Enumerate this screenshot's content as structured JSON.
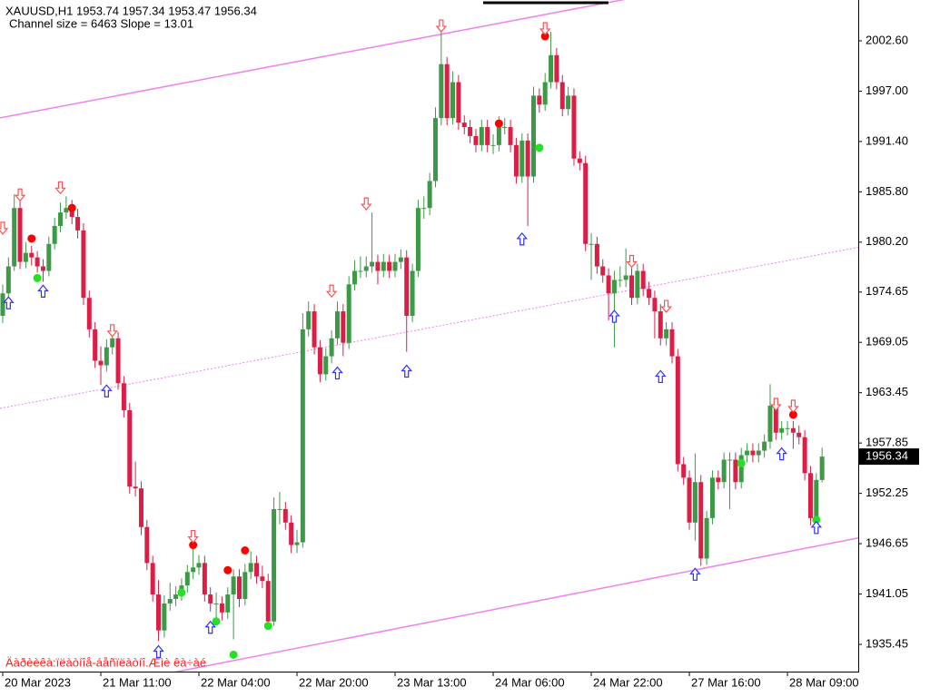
{
  "chart_data": {
    "type": "candlestick",
    "title": "XAUUSD,H1  1953.74 1957.34 1953.47 1956.34",
    "subtitle": "Channel size = 6463 Slope = 13.01",
    "footer": "Äàðèèêà:ïëàòíîå-áåñïëàòíî.Æìè êà÷àé",
    "bull_color": "#3c9a46",
    "bear_color": "#dc1e46",
    "xlim": [
      -0.47,
      148.27
    ],
    "ylim": [
      1932.42,
      2007.14
    ],
    "yticks": [
      {
        "value": 2002.6,
        "label": "2002.60"
      },
      {
        "value": 1997,
        "label": "1997.00"
      },
      {
        "value": 1991.4,
        "label": "1991.40"
      },
      {
        "value": 1985.8,
        "label": "1985.80"
      },
      {
        "value": 1980.2,
        "label": "1980.20"
      },
      {
        "value": 1974.65,
        "label": "1974.65"
      },
      {
        "value": 1969.05,
        "label": "1969.05"
      },
      {
        "value": 1963.45,
        "label": "1963.45"
      },
      {
        "value": 1957.85,
        "label": "1957.85"
      },
      {
        "value": 1952.25,
        "label": "1952.25"
      },
      {
        "value": 1946.65,
        "label": "1946.65"
      },
      {
        "value": 1941.05,
        "label": "1941.05"
      },
      {
        "value": 1935.45,
        "label": "1935.45"
      }
    ],
    "xticks": [
      {
        "value": 0,
        "label": "20 Mar 2023"
      },
      {
        "value": 17,
        "label": "21 Mar 11:00"
      },
      {
        "value": 34,
        "label": "22 Mar 04:00"
      },
      {
        "value": 51,
        "label": "22 Mar 20:00"
      },
      {
        "value": 68,
        "label": "23 Mar 13:00"
      },
      {
        "value": 85,
        "label": "24 Mar 06:00"
      },
      {
        "value": 102,
        "label": "24 Mar 22:00"
      },
      {
        "value": 119,
        "label": "27 Mar 16:00"
      },
      {
        "value": 136,
        "label": "28 Mar 09:00"
      }
    ],
    "candles": [
      [
        1972.0,
        1975.5,
        1971.2,
        1974.5
      ],
      [
        1974.5,
        1978.5,
        1973.8,
        1977.5
      ],
      [
        1977.5,
        1985.5,
        1977.0,
        1984.0
      ],
      [
        1984.0,
        1984.8,
        1977.2,
        1978.0
      ],
      [
        1978.0,
        1980.2,
        1977.3,
        1979.0
      ],
      [
        1979.0,
        1979.8,
        1977.6,
        1978.5
      ],
      [
        1978.5,
        1979.2,
        1976.8,
        1977.5
      ],
      [
        1977.5,
        1978.3,
        1975.8,
        1977.0
      ],
      [
        1977.0,
        1980.8,
        1976.4,
        1980.0
      ],
      [
        1980.0,
        1982.9,
        1979.4,
        1982.0
      ],
      [
        1982.0,
        1984.6,
        1981.3,
        1983.5
      ],
      [
        1983.5,
        1985.3,
        1982.8,
        1984.0
      ],
      [
        1984.0,
        1984.9,
        1982.2,
        1983.0
      ],
      [
        1983.0,
        1983.9,
        1980.6,
        1981.5
      ],
      [
        1981.5,
        1982.3,
        1973.2,
        1974.0
      ],
      [
        1974.0,
        1974.8,
        1969.6,
        1970.5
      ],
      [
        1970.5,
        1971.3,
        1966.2,
        1967.0
      ],
      [
        1967.0,
        1968.6,
        1964.3,
        1966.5
      ],
      [
        1966.5,
        1969.4,
        1965.8,
        1968.5
      ],
      [
        1968.5,
        1970.3,
        1967.7,
        1969.5
      ],
      [
        1969.5,
        1970.2,
        1963.8,
        1964.5
      ],
      [
        1964.5,
        1965.3,
        1960.7,
        1961.5
      ],
      [
        1961.5,
        1962.3,
        1952.2,
        1953.0
      ],
      [
        1953.0,
        1955.8,
        1951.9,
        1952.8
      ],
      [
        1952.8,
        1953.6,
        1947.6,
        1948.5
      ],
      [
        1948.5,
        1949.3,
        1943.7,
        1944.5
      ],
      [
        1944.5,
        1945.3,
        1940.2,
        1941.0
      ],
      [
        1941.0,
        1942.6,
        1935.8,
        1937.0
      ],
      [
        1937.0,
        1940.9,
        1936.2,
        1940.0
      ],
      [
        1940.0,
        1942.3,
        1939.2,
        1940.5
      ],
      [
        1940.5,
        1941.9,
        1939.7,
        1941.0
      ],
      [
        1941.0,
        1942.8,
        1940.3,
        1942.0
      ],
      [
        1942.0,
        1944.3,
        1941.2,
        1943.5
      ],
      [
        1943.5,
        1946.8,
        1942.7,
        1944.0
      ],
      [
        1944.0,
        1945.4,
        1943.2,
        1944.5
      ],
      [
        1944.5,
        1945.3,
        1940.2,
        1941.0
      ],
      [
        1941.0,
        1941.8,
        1939.1,
        1940.0
      ],
      [
        1940.0,
        1941.2,
        1938.3,
        1940.0
      ],
      [
        1940.0,
        1940.8,
        1938.1,
        1939.0
      ],
      [
        1939.0,
        1941.8,
        1938.3,
        1941.0
      ],
      [
        1941.0,
        1943.8,
        1936.0,
        1943.0
      ],
      [
        1943.0,
        1943.8,
        1939.6,
        1940.5
      ],
      [
        1940.5,
        1944.4,
        1939.8,
        1943.5
      ],
      [
        1943.5,
        1945.8,
        1942.7,
        1944.5
      ],
      [
        1944.5,
        1945.3,
        1942.2,
        1943.0
      ],
      [
        1943.0,
        1944.2,
        1941.7,
        1942.5
      ],
      [
        1942.5,
        1943.3,
        1937.2,
        1938.0
      ],
      [
        1938.0,
        1951.8,
        1937.5,
        1950.5
      ],
      [
        1950.5,
        1952.4,
        1948.8,
        1950.5
      ],
      [
        1950.5,
        1951.3,
        1948.2,
        1949.0
      ],
      [
        1949.0,
        1949.8,
        1945.6,
        1946.5
      ],
      [
        1946.5,
        1948.2,
        1945.6,
        1946.8
      ],
      [
        1946.8,
        1972.3,
        1946.2,
        1970.5
      ],
      [
        1970.5,
        1973.6,
        1969.7,
        1972.5
      ],
      [
        1972.5,
        1973.3,
        1967.7,
        1968.5
      ],
      [
        1968.5,
        1969.3,
        1964.6,
        1965.5
      ],
      [
        1965.5,
        1968.4,
        1964.8,
        1967.5
      ],
      [
        1967.5,
        1970.4,
        1966.7,
        1969.5
      ],
      [
        1969.5,
        1973.6,
        1968.8,
        1972.5
      ],
      [
        1972.5,
        1973.3,
        1967.5,
        1969.0
      ],
      [
        1969.0,
        1976.4,
        1968.3,
        1975.5
      ],
      [
        1975.5,
        1978.2,
        1974.8,
        1977.0
      ],
      [
        1977.0,
        1978.6,
        1976.2,
        1977.0
      ],
      [
        1977.0,
        1978.6,
        1976.3,
        1977.5
      ],
      [
        1977.5,
        1983.5,
        1976.8,
        1978.0
      ],
      [
        1978.0,
        1978.8,
        1975.5,
        1977.0
      ],
      [
        1977.0,
        1978.9,
        1976.3,
        1978.0
      ],
      [
        1978.0,
        1978.8,
        1976.2,
        1977.0
      ],
      [
        1977.0,
        1978.9,
        1976.3,
        1978.0
      ],
      [
        1978.0,
        1979.4,
        1977.2,
        1978.5
      ],
      [
        1978.5,
        1979.3,
        1968.0,
        1972.0
      ],
      [
        1972.0,
        1977.8,
        1971.3,
        1977.0
      ],
      [
        1977.0,
        1984.9,
        1976.3,
        1984.0
      ],
      [
        1984.0,
        1985.3,
        1982.8,
        1984.0
      ],
      [
        1984.0,
        1987.9,
        1983.2,
        1987.0
      ],
      [
        1987.0,
        1995.2,
        1986.3,
        1994.0
      ],
      [
        1994.0,
        2004.0,
        1993.2,
        2000.0
      ],
      [
        2000.0,
        2000.8,
        1993.2,
        1994.0
      ],
      [
        1994.0,
        1999.2,
        1993.3,
        1998.0
      ],
      [
        1998.0,
        1998.8,
        1992.7,
        1993.5
      ],
      [
        1993.5,
        1994.3,
        1992.2,
        1993.0
      ],
      [
        1993.0,
        1993.8,
        1991.2,
        1992.0
      ],
      [
        1992.0,
        1992.8,
        1990.2,
        1991.0
      ],
      [
        1991.0,
        1993.8,
        1990.3,
        1993.0
      ],
      [
        1993.0,
        1993.8,
        1990.2,
        1991.0
      ],
      [
        1991.0,
        1992.2,
        1990.0,
        1991.0
      ],
      [
        1991.0,
        1994.2,
        1990.3,
        1993.0
      ],
      [
        1993.0,
        1994.0,
        1992.2,
        1993.0
      ],
      [
        1993.0,
        1993.8,
        1990.2,
        1991.0
      ],
      [
        1991.0,
        1991.8,
        1986.7,
        1987.5
      ],
      [
        1987.5,
        1992.3,
        1986.8,
        1991.5
      ],
      [
        1991.5,
        1992.3,
        1982.0,
        1987.5
      ],
      [
        1987.5,
        1997.5,
        1986.8,
        1996.5
      ],
      [
        1996.5,
        1997.3,
        1994.6,
        1995.5
      ],
      [
        1995.5,
        1999.0,
        1994.8,
        1998.0
      ],
      [
        1998.0,
        2003.6,
        1997.3,
        2001.0
      ],
      [
        2001.0,
        2001.8,
        1997.2,
        1998.0
      ],
      [
        1998.0,
        1998.8,
        1994.2,
        1995.0
      ],
      [
        1995.0,
        1997.5,
        1994.3,
        1996.5
      ],
      [
        1996.5,
        1997.3,
        1988.7,
        1989.5
      ],
      [
        1989.5,
        1990.3,
        1988.2,
        1989.0
      ],
      [
        1989.0,
        1989.8,
        1979.2,
        1980.0
      ],
      [
        1980.0,
        1981.2,
        1976.0,
        1980.0
      ],
      [
        1980.0,
        1980.8,
        1976.7,
        1977.5
      ],
      [
        1977.5,
        1978.3,
        1975.7,
        1976.5
      ],
      [
        1976.5,
        1977.3,
        1971.5,
        1974.5
      ],
      [
        1974.5,
        1977.0,
        1968.5,
        1976.0
      ],
      [
        1976.0,
        1977.5,
        1975.2,
        1976.0
      ],
      [
        1976.0,
        1979.5,
        1975.2,
        1976.5
      ],
      [
        1976.5,
        1977.3,
        1973.2,
        1974.0
      ],
      [
        1974.0,
        1977.8,
        1973.3,
        1977.0
      ],
      [
        1977.0,
        1977.8,
        1974.2,
        1975.0
      ],
      [
        1975.0,
        1975.8,
        1973.2,
        1974.0
      ],
      [
        1974.0,
        1974.8,
        1969.5,
        1972.5
      ],
      [
        1972.5,
        1973.3,
        1968.7,
        1969.5
      ],
      [
        1969.5,
        1971.3,
        1968.7,
        1970.5
      ],
      [
        1970.5,
        1971.3,
        1966.7,
        1967.5
      ],
      [
        1967.5,
        1968.3,
        1954.7,
        1955.5
      ],
      [
        1955.5,
        1956.3,
        1953.2,
        1954.0
      ],
      [
        1954.0,
        1954.8,
        1948.2,
        1949.0
      ],
      [
        1949.0,
        1956.7,
        1947.0,
        1953.5
      ],
      [
        1953.5,
        1954.3,
        1944.2,
        1945.0
      ],
      [
        1945.0,
        1950.3,
        1944.3,
        1949.5
      ],
      [
        1949.5,
        1954.8,
        1948.8,
        1954.0
      ],
      [
        1954.0,
        1954.8,
        1952.7,
        1953.5
      ],
      [
        1953.5,
        1956.8,
        1952.8,
        1956.0
      ],
      [
        1956.0,
        1956.8,
        1950.5,
        1956.0
      ],
      [
        1956.0,
        1956.8,
        1952.7,
        1953.5
      ],
      [
        1953.5,
        1957.3,
        1952.8,
        1956.5
      ],
      [
        1956.5,
        1957.8,
        1955.7,
        1957.0
      ],
      [
        1957.0,
        1957.8,
        1955.7,
        1956.5
      ],
      [
        1956.5,
        1957.8,
        1955.7,
        1957.0
      ],
      [
        1957.0,
        1958.8,
        1956.2,
        1958.0
      ],
      [
        1958.0,
        1964.4,
        1957.2,
        1962.0
      ],
      [
        1962.0,
        1962.8,
        1958.2,
        1959.0
      ],
      [
        1959.0,
        1960.3,
        1958.2,
        1959.5
      ],
      [
        1959.5,
        1960.3,
        1958.7,
        1959.5
      ],
      [
        1959.5,
        1960.3,
        1957.2,
        1959.0
      ],
      [
        1959.0,
        1959.8,
        1957.7,
        1958.5
      ],
      [
        1958.5,
        1959.3,
        1953.7,
        1954.5
      ],
      [
        1954.5,
        1955.3,
        1948.7,
        1949.5
      ],
      [
        1949.5,
        1954.5,
        1948.7,
        1953.74
      ],
      [
        1953.74,
        1957.34,
        1953.47,
        1956.34
      ]
    ],
    "channel": {
      "color": "#ee82ee",
      "upper": [
        [
          0,
          1994.08
        ],
        [
          142,
          2011.37
        ]
      ],
      "middle": [
        [
          0,
          1961.76
        ],
        [
          142,
          1978.87
        ]
      ],
      "lower": [
        [
          0,
          1928.6
        ],
        [
          142,
          1946.5
        ]
      ]
    },
    "sell_dots": {
      "color": "#ff0000",
      "points": [
        [
          5,
          1980.6
        ],
        [
          12,
          1984.0
        ],
        [
          33,
          1946.5
        ],
        [
          39,
          1943.7
        ],
        [
          42,
          1945.9
        ],
        [
          86,
          1993.4
        ],
        [
          94,
          2003.1
        ],
        [
          137,
          1961.0
        ]
      ]
    },
    "buy_dots": {
      "color": "#22e222",
      "points": [
        [
          6,
          1976.2
        ],
        [
          31,
          1941.2
        ],
        [
          37,
          1938.0
        ],
        [
          40,
          1934.3
        ],
        [
          46,
          1937.5
        ],
        [
          93,
          1990.7
        ],
        [
          128,
          1955.6
        ],
        [
          141,
          1949.3
        ]
      ]
    },
    "up_arrows": {
      "color": "#3030ff",
      "points": [
        [
          1,
          1974.1
        ],
        [
          7,
          1975.4
        ],
        [
          18,
          1964.3
        ],
        [
          27,
          1935.3
        ],
        [
          36,
          1938.0
        ],
        [
          58,
          1966.3
        ],
        [
          70,
          1966.5
        ],
        [
          90,
          1981.2
        ],
        [
          106,
          1972.6
        ],
        [
          114,
          1965.9
        ],
        [
          120,
          1943.9
        ],
        [
          135,
          1957.3
        ],
        [
          141,
          1949.1
        ]
      ]
    },
    "down_arrows": {
      "color": "#ff5050",
      "points": [
        [
          0,
          1981.1
        ],
        [
          3,
          1984.8
        ],
        [
          10,
          1985.6
        ],
        [
          19,
          1969.7
        ],
        [
          33,
          1946.8
        ],
        [
          57,
          1974.1
        ],
        [
          63,
          1983.8
        ],
        [
          76,
          2003.6
        ],
        [
          94,
          2003.3
        ],
        [
          109,
          1977.4
        ],
        [
          115,
          1972.4
        ],
        [
          134,
          1961.5
        ],
        [
          137,
          1961.3
        ]
      ]
    }
  }
}
